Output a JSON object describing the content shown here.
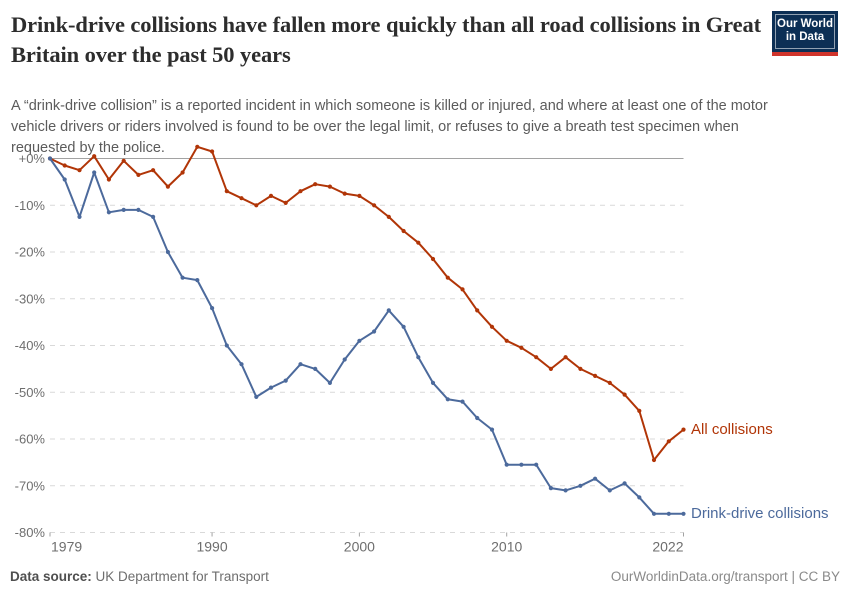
{
  "header": {
    "title": "Drink-drive collisions have fallen more quickly than all road collisions in Great Britain over the past 50 years",
    "subtitle": "A “drink-drive collision” is a reported incident in which someone is killed or injured, and where at least one of the motor vehicle drivers or riders involved is found to be over the legal limit, or refuses to give a breath test specimen when requested by the police.",
    "logo": {
      "line1": "Our World",
      "line2": "in Data",
      "bg_color": "#0C2F55",
      "bar_color": "#D0342C"
    }
  },
  "chart_data": {
    "type": "line",
    "title": "Drink-drive collisions have fallen more quickly than all road collisions in Great Britain over the past 50 years",
    "unit": "% change since 1979",
    "x": [
      1979,
      1980,
      1981,
      1982,
      1983,
      1984,
      1985,
      1986,
      1987,
      1988,
      1989,
      1990,
      1991,
      1992,
      1993,
      1994,
      1995,
      1996,
      1997,
      1998,
      1999,
      2000,
      2001,
      2002,
      2003,
      2004,
      2005,
      2006,
      2007,
      2008,
      2009,
      2010,
      2011,
      2012,
      2013,
      2014,
      2015,
      2016,
      2017,
      2018,
      2019,
      2020,
      2021,
      2022
    ],
    "series": [
      {
        "name": "All collisions",
        "color": "#B13507",
        "values": [
          0,
          -1.5,
          -2.5,
          0.5,
          -4.5,
          -0.5,
          -3.5,
          -2.5,
          -6,
          -3,
          2.5,
          1.5,
          -7,
          -8.5,
          -10,
          -8,
          -9.5,
          -7,
          -5.5,
          -6,
          -7.5,
          -8,
          -10,
          -12.5,
          -15.5,
          -18,
          -21.5,
          -25.5,
          -28,
          -32.5,
          -36,
          -39,
          -40.5,
          -42.5,
          -45,
          -42.5,
          -45,
          -46.5,
          -48,
          -50.5,
          -54,
          -64.5,
          -60.5,
          -58
        ]
      },
      {
        "name": "Drink-drive collisions",
        "color": "#4C6A9C",
        "values": [
          0,
          -4.5,
          -12.5,
          -3,
          -11.5,
          -11,
          -11,
          -12.5,
          -20,
          -25.5,
          -26,
          -32,
          -40,
          -44,
          -51,
          -49,
          -47.5,
          -44,
          -45,
          -48,
          -43,
          -39,
          -37,
          -32.5,
          -36,
          -42.5,
          -48,
          -51.5,
          -52,
          -55.5,
          -58,
          -65.5,
          -65.5,
          -65.5,
          -70.5,
          -71,
          -70,
          -68.5,
          -71,
          -69.5,
          -72.5,
          -76,
          -76,
          -76
        ]
      }
    ],
    "ylim": [
      -80,
      0
    ],
    "yticks": [
      {
        "label": "+0%",
        "value": 0
      },
      {
        "label": "-10%",
        "value": -10
      },
      {
        "label": "-20%",
        "value": -20
      },
      {
        "label": "-30%",
        "value": -30
      },
      {
        "label": "-40%",
        "value": -40
      },
      {
        "label": "-50%",
        "value": -50
      },
      {
        "label": "-60%",
        "value": -60
      },
      {
        "label": "-70%",
        "value": -70
      },
      {
        "label": "-80%",
        "value": -80
      }
    ],
    "xticks": [
      1979,
      1990,
      2000,
      2010,
      2022
    ],
    "grid": "horizontal-dashed",
    "zero_line": true,
    "legend_position": "right-of-line-end",
    "colors": {
      "grid": "#d9d9d9",
      "zero_line": "#a2a2a2",
      "tick_text": "#6e6e6e"
    }
  },
  "footer": {
    "source_label": "Data source:",
    "source_value": " UK Department for Transport",
    "attribution": "OurWorldinData.org/transport | CC BY"
  }
}
